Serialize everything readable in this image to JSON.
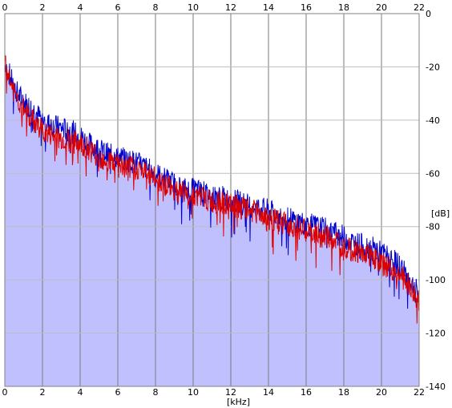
{
  "chart_data": {
    "type": "line",
    "title": "",
    "xlabel": "[kHz]",
    "ylabel": "[dB]",
    "xlim": [
      0,
      22
    ],
    "ylim": [
      -140,
      0
    ],
    "x_ticks": [
      0,
      2,
      4,
      6,
      8,
      10,
      12,
      14,
      16,
      18,
      20,
      22
    ],
    "y_ticks": [
      0,
      -20,
      -40,
      -60,
      -80,
      -100,
      -120,
      -140
    ],
    "y_tick_labels": [
      "0",
      "-20",
      "-40",
      "-60",
      "-80",
      "-100",
      "-120",
      "-140"
    ],
    "x_tick_labels_top": true,
    "x_tick_labels_bottom": true,
    "grid": true,
    "fill_under": true,
    "series": [
      {
        "color": "#0000cc",
        "x": [
          0,
          0.5,
          1,
          1.5,
          2,
          2.5,
          3,
          3.5,
          4,
          4.5,
          5,
          5.5,
          6,
          6.5,
          7,
          7.5,
          8,
          8.5,
          9,
          9.5,
          10,
          10.5,
          11,
          11.5,
          12,
          12.5,
          13,
          13.5,
          14,
          14.5,
          15,
          15.5,
          16,
          16.5,
          17,
          17.5,
          18,
          18.5,
          19,
          19.5,
          20,
          20.5,
          21,
          21.5,
          22
        ],
        "values": [
          -18,
          -28,
          -33,
          -36,
          -40,
          -42,
          -43,
          -44,
          -46,
          -49,
          -51,
          -53,
          -54,
          -55,
          -56,
          -58,
          -60,
          -62,
          -64,
          -66,
          -66,
          -67,
          -69,
          -69,
          -70,
          -71,
          -72,
          -73,
          -74,
          -76,
          -77,
          -78,
          -79,
          -80,
          -81,
          -82,
          -84,
          -86,
          -87,
          -88,
          -90,
          -92,
          -95,
          -100,
          -106
        ]
      },
      {
        "color": "#dd0000",
        "x": [
          0,
          0.5,
          1,
          1.5,
          2,
          2.5,
          3,
          3.5,
          4,
          4.5,
          5,
          5.5,
          6,
          6.5,
          7,
          7.5,
          8,
          8.5,
          9,
          9.5,
          10,
          10.5,
          11,
          11.5,
          12,
          12.5,
          13,
          13.5,
          14,
          14.5,
          15,
          15.5,
          16,
          16.5,
          17,
          17.5,
          18,
          18.5,
          19,
          19.5,
          20,
          20.5,
          21,
          21.5,
          22
        ],
        "values": [
          -19,
          -30,
          -36,
          -40,
          -44,
          -46,
          -47,
          -48,
          -49,
          -51,
          -54,
          -55,
          -57,
          -58,
          -58,
          -60,
          -62,
          -64,
          -66,
          -67,
          -68,
          -69,
          -71,
          -71,
          -72,
          -73,
          -74,
          -75,
          -77,
          -78,
          -79,
          -80,
          -82,
          -83,
          -84,
          -85,
          -87,
          -89,
          -90,
          -91,
          -94,
          -96,
          -98,
          -103,
          -109
        ]
      }
    ]
  }
}
